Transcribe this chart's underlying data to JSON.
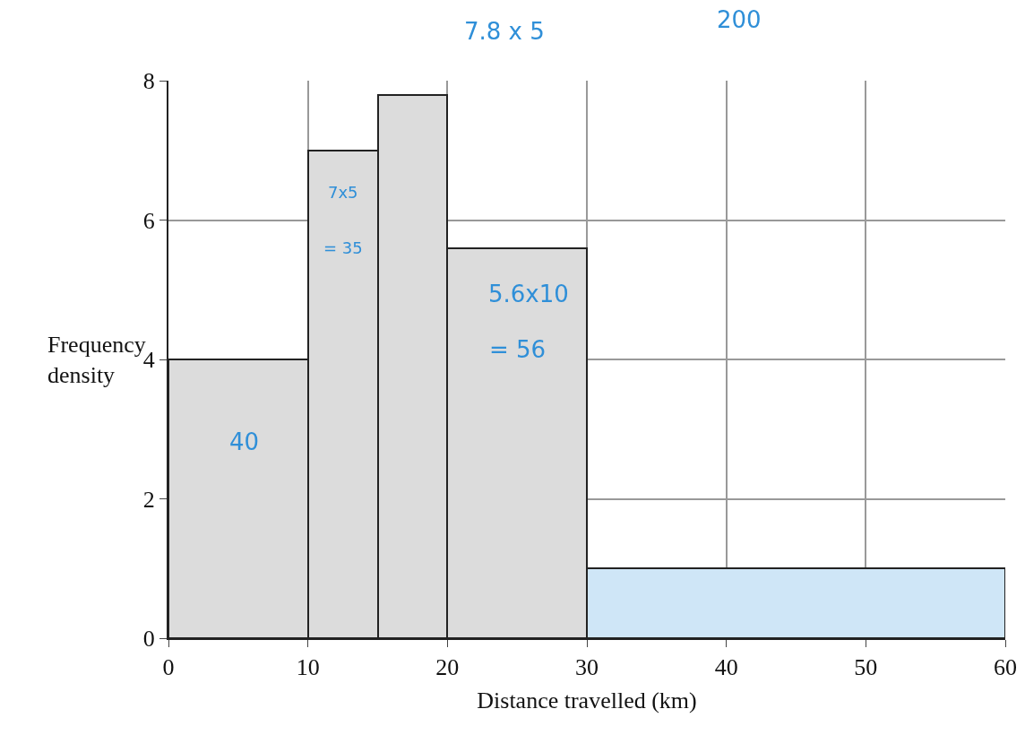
{
  "chart_data": {
    "type": "histogram",
    "xlabel": "Distance travelled (km)",
    "ylabel": "Frequency density",
    "bins": [
      0,
      10,
      15,
      20,
      30,
      60
    ],
    "values": [
      4,
      7,
      7.8,
      5.6,
      1
    ],
    "colors": [
      "#dcdcdc",
      "#dcdcdc",
      "#dcdcdc",
      "#dcdcdc",
      "#cfe6f7"
    ],
    "xlim": [
      0,
      60
    ],
    "xticks": [
      0,
      10,
      20,
      30,
      40,
      50,
      60
    ],
    "ylim": [
      0,
      8
    ],
    "yticks": [
      0,
      2,
      4,
      6,
      8
    ],
    "grid": true,
    "annotations": [
      "200",
      "7.8 x 5",
      "7x5",
      "= 35",
      "5.6x10",
      "= 56",
      "40"
    ]
  }
}
